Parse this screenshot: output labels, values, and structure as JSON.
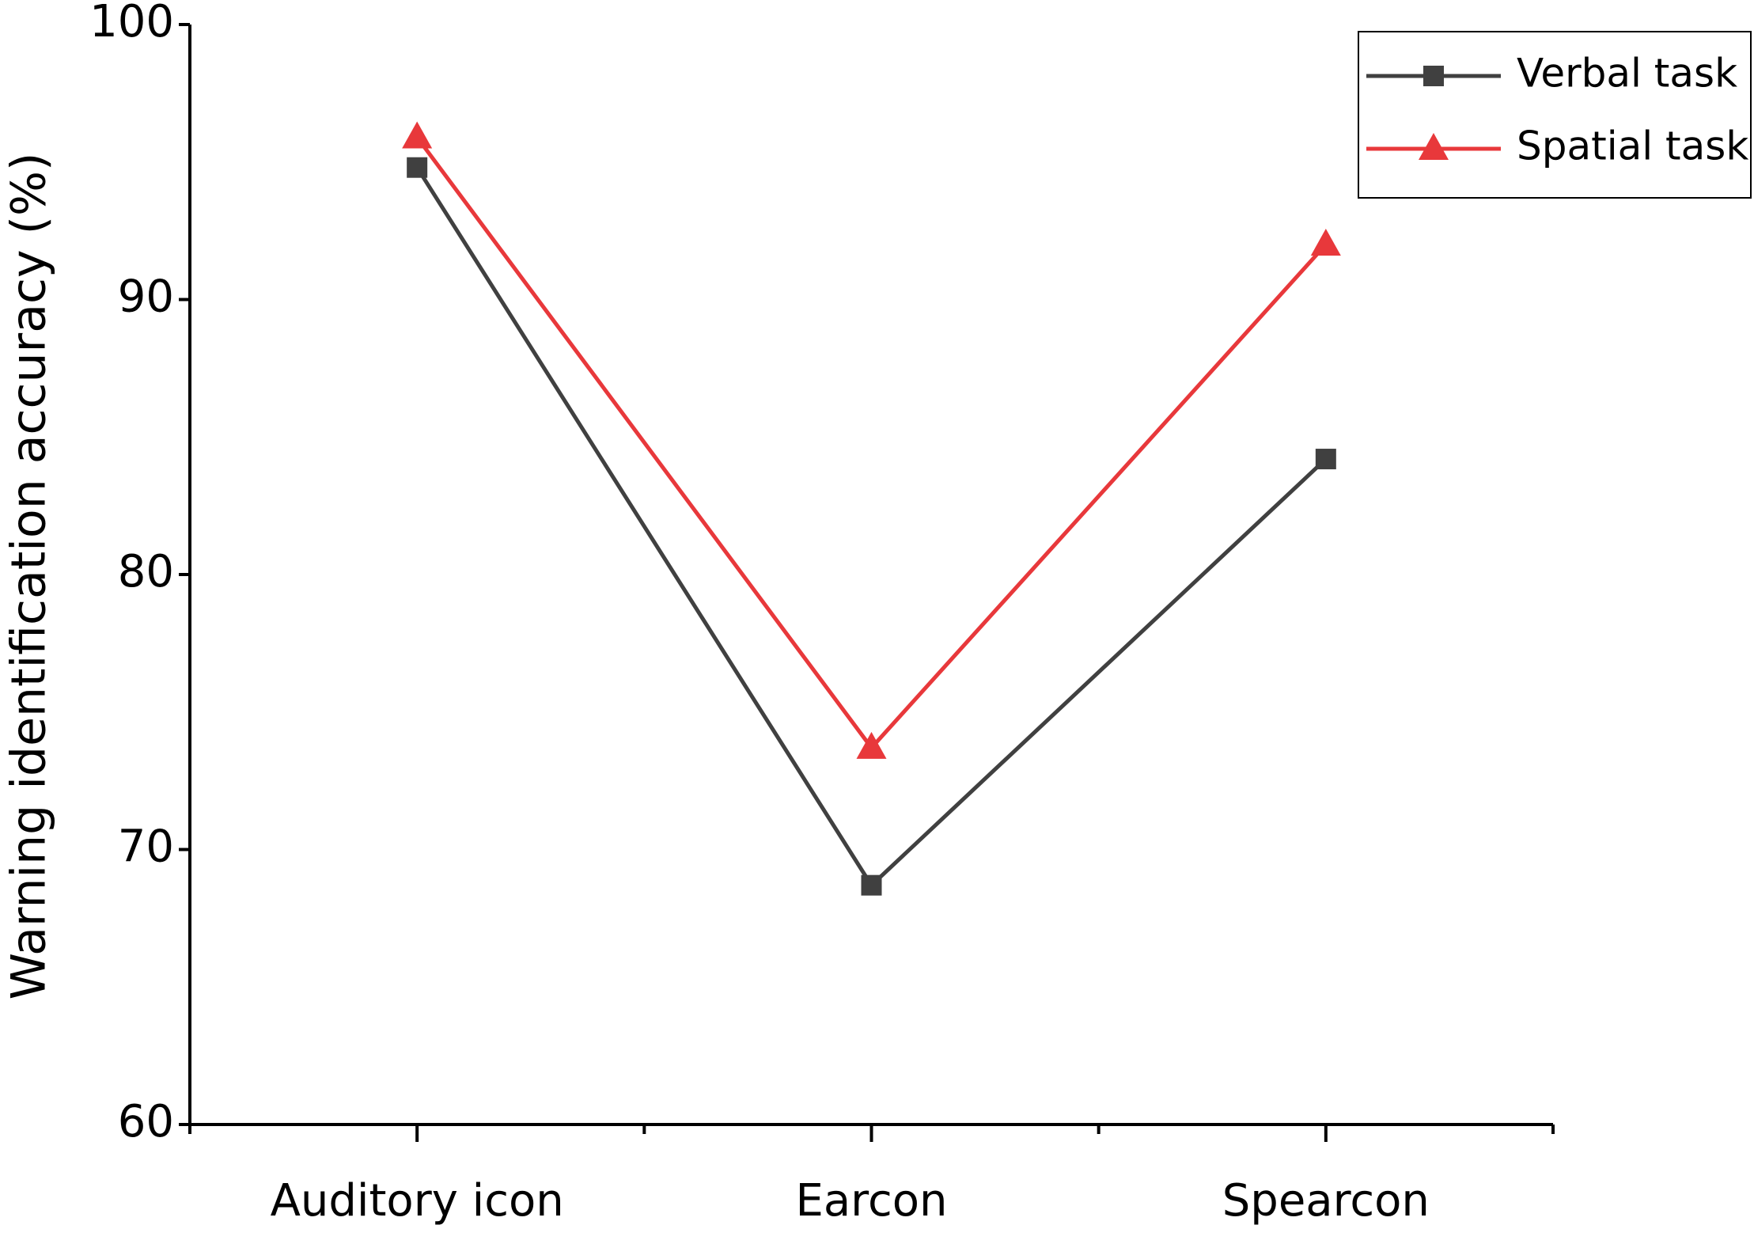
{
  "chart_data": {
    "type": "line",
    "y_label": "Warning identification accuracy (%)",
    "categories": [
      "Auditory icon",
      "Earcon",
      "Spearcon"
    ],
    "series": [
      {
        "name": "Verbal task",
        "color": "#404040",
        "marker": "square",
        "values": [
          94.8,
          68.7,
          84.2
        ]
      },
      {
        "name": "Spatial task",
        "color": "#e8383b",
        "marker": "triangle",
        "values": [
          95.9,
          73.7,
          92.0
        ]
      }
    ],
    "ylim": [
      60,
      100
    ],
    "yticks": [
      60,
      70,
      80,
      90,
      100
    ],
    "grid": false,
    "legend": "top-right"
  }
}
